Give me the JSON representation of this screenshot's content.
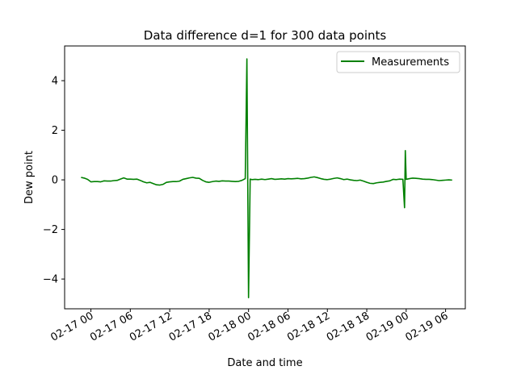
{
  "chart_data": {
    "type": "line",
    "title": "Data difference d=1 for 300 data points",
    "xlabel": "Date and time",
    "ylabel": "Dew point",
    "x_axis": {
      "kind": "datetime",
      "range": [
        "2017-02-16 20:00",
        "2017-02-19 09:00"
      ],
      "ticks": [
        {
          "value": "2017-02-17 00:00",
          "label": "02-17 00"
        },
        {
          "value": "2017-02-17 06:00",
          "label": "02-17 06"
        },
        {
          "value": "2017-02-17 12:00",
          "label": "02-17 12"
        },
        {
          "value": "2017-02-17 18:00",
          "label": "02-17 18"
        },
        {
          "value": "2017-02-18 00:00",
          "label": "02-18 00"
        },
        {
          "value": "2017-02-18 06:00",
          "label": "02-18 06"
        },
        {
          "value": "2017-02-18 12:00",
          "label": "02-18 12"
        },
        {
          "value": "2017-02-18 18:00",
          "label": "02-18 18"
        },
        {
          "value": "2017-02-19 00:00",
          "label": "02-19 00"
        },
        {
          "value": "2017-02-19 06:00",
          "label": "02-19 06"
        }
      ]
    },
    "y_axis": {
      "range": [
        -5.2,
        5.4
      ],
      "ticks": [
        {
          "value": -4,
          "label": "−4"
        },
        {
          "value": -2,
          "label": "−2"
        },
        {
          "value": 0,
          "label": "0"
        },
        {
          "value": 2,
          "label": "2"
        },
        {
          "value": 4,
          "label": "4"
        }
      ]
    },
    "grid": false,
    "legend": {
      "position": "top-right",
      "entries": [
        "Measurements"
      ]
    },
    "series": [
      {
        "name": "Measurements",
        "color": "#008000",
        "points": [
          [
            "2017-02-16 22:30",
            0.1
          ],
          [
            "2017-02-16 23:00",
            0.07
          ],
          [
            "2017-02-16 23:30",
            0.02
          ],
          [
            "2017-02-17 00:00",
            -0.08
          ],
          [
            "2017-02-17 00:30",
            -0.07
          ],
          [
            "2017-02-17 01:00",
            -0.07
          ],
          [
            "2017-02-17 01:30",
            -0.08
          ],
          [
            "2017-02-17 02:00",
            -0.04
          ],
          [
            "2017-02-17 02:30",
            -0.05
          ],
          [
            "2017-02-17 03:00",
            -0.05
          ],
          [
            "2017-02-17 03:30",
            -0.03
          ],
          [
            "2017-02-17 04:00",
            -0.02
          ],
          [
            "2017-02-17 04:30",
            0.03
          ],
          [
            "2017-02-17 05:00",
            0.08
          ],
          [
            "2017-02-17 05:30",
            0.03
          ],
          [
            "2017-02-17 06:00",
            0.03
          ],
          [
            "2017-02-17 06:30",
            0.02
          ],
          [
            "2017-02-17 07:00",
            0.03
          ],
          [
            "2017-02-17 07:30",
            -0.02
          ],
          [
            "2017-02-17 08:00",
            -0.08
          ],
          [
            "2017-02-17 08:30",
            -0.12
          ],
          [
            "2017-02-17 09:00",
            -0.1
          ],
          [
            "2017-02-17 09:30",
            -0.15
          ],
          [
            "2017-02-17 10:00",
            -0.2
          ],
          [
            "2017-02-17 10:30",
            -0.21
          ],
          [
            "2017-02-17 11:00",
            -0.18
          ],
          [
            "2017-02-17 11:30",
            -0.1
          ],
          [
            "2017-02-17 12:00",
            -0.08
          ],
          [
            "2017-02-17 12:30",
            -0.07
          ],
          [
            "2017-02-17 13:00",
            -0.07
          ],
          [
            "2017-02-17 13:30",
            -0.05
          ],
          [
            "2017-02-17 14:00",
            0.02
          ],
          [
            "2017-02-17 14:30",
            0.05
          ],
          [
            "2017-02-17 15:00",
            0.08
          ],
          [
            "2017-02-17 15:30",
            0.1
          ],
          [
            "2017-02-17 16:00",
            0.07
          ],
          [
            "2017-02-17 16:30",
            0.06
          ],
          [
            "2017-02-17 17:00",
            -0.02
          ],
          [
            "2017-02-17 17:30",
            -0.08
          ],
          [
            "2017-02-17 18:00",
            -0.1
          ],
          [
            "2017-02-17 18:30",
            -0.07
          ],
          [
            "2017-02-17 19:00",
            -0.05
          ],
          [
            "2017-02-17 19:30",
            -0.06
          ],
          [
            "2017-02-17 20:00",
            -0.04
          ],
          [
            "2017-02-17 20:30",
            -0.05
          ],
          [
            "2017-02-17 21:00",
            -0.05
          ],
          [
            "2017-02-17 21:30",
            -0.06
          ],
          [
            "2017-02-17 22:00",
            -0.07
          ],
          [
            "2017-02-17 22:30",
            -0.06
          ],
          [
            "2017-02-17 23:00",
            -0.02
          ],
          [
            "2017-02-17 23:30",
            0.05
          ],
          [
            "2017-02-17 23:45",
            4.88
          ],
          [
            "2017-02-18 00:00",
            -4.75
          ],
          [
            "2017-02-18 00:15",
            0.03
          ],
          [
            "2017-02-18 00:30",
            0.01
          ],
          [
            "2017-02-18 01:00",
            0.02
          ],
          [
            "2017-02-18 01:30",
            0.01
          ],
          [
            "2017-02-18 02:00",
            0.03
          ],
          [
            "2017-02-18 02:30",
            0.01
          ],
          [
            "2017-02-18 03:00",
            0.03
          ],
          [
            "2017-02-18 03:30",
            0.05
          ],
          [
            "2017-02-18 04:00",
            0.02
          ],
          [
            "2017-02-18 04:30",
            0.03
          ],
          [
            "2017-02-18 05:00",
            0.04
          ],
          [
            "2017-02-18 05:30",
            0.03
          ],
          [
            "2017-02-18 06:00",
            0.05
          ],
          [
            "2017-02-18 06:30",
            0.04
          ],
          [
            "2017-02-18 07:00",
            0.05
          ],
          [
            "2017-02-18 07:30",
            0.06
          ],
          [
            "2017-02-18 08:00",
            0.04
          ],
          [
            "2017-02-18 08:30",
            0.05
          ],
          [
            "2017-02-18 09:00",
            0.07
          ],
          [
            "2017-02-18 09:30",
            0.1
          ],
          [
            "2017-02-18 10:00",
            0.12
          ],
          [
            "2017-02-18 10:30",
            0.09
          ],
          [
            "2017-02-18 11:00",
            0.05
          ],
          [
            "2017-02-18 11:30",
            0.02
          ],
          [
            "2017-02-18 12:00",
            0.01
          ],
          [
            "2017-02-18 12:30",
            0.03
          ],
          [
            "2017-02-18 13:00",
            0.06
          ],
          [
            "2017-02-18 13:30",
            0.08
          ],
          [
            "2017-02-18 14:00",
            0.05
          ],
          [
            "2017-02-18 14:30",
            0.01
          ],
          [
            "2017-02-18 15:00",
            0.03
          ],
          [
            "2017-02-18 15:30",
            0.0
          ],
          [
            "2017-02-18 16:00",
            -0.02
          ],
          [
            "2017-02-18 16:30",
            -0.03
          ],
          [
            "2017-02-18 17:00",
            -0.01
          ],
          [
            "2017-02-18 17:30",
            -0.05
          ],
          [
            "2017-02-18 18:00",
            -0.1
          ],
          [
            "2017-02-18 18:30",
            -0.14
          ],
          [
            "2017-02-18 19:00",
            -0.15
          ],
          [
            "2017-02-18 19:30",
            -0.12
          ],
          [
            "2017-02-18 20:00",
            -0.1
          ],
          [
            "2017-02-18 20:30",
            -0.09
          ],
          [
            "2017-02-18 21:00",
            -0.06
          ],
          [
            "2017-02-18 21:30",
            -0.04
          ],
          [
            "2017-02-18 22:00",
            0.02
          ],
          [
            "2017-02-18 22:30",
            0.01
          ],
          [
            "2017-02-18 23:00",
            0.03
          ],
          [
            "2017-02-18 23:30",
            0.02
          ],
          [
            "2017-02-18 23:45",
            -1.12
          ],
          [
            "2017-02-18 23:52",
            1.18
          ],
          [
            "2017-02-19 00:00",
            0.02
          ],
          [
            "2017-02-19 00:30",
            0.05
          ],
          [
            "2017-02-19 01:00",
            0.07
          ],
          [
            "2017-02-19 01:30",
            0.06
          ],
          [
            "2017-02-19 02:00",
            0.05
          ],
          [
            "2017-02-19 02:30",
            0.03
          ],
          [
            "2017-02-19 03:00",
            0.02
          ],
          [
            "2017-02-19 03:30",
            0.02
          ],
          [
            "2017-02-19 04:00",
            0.01
          ],
          [
            "2017-02-19 04:30",
            -0.01
          ],
          [
            "2017-02-19 05:00",
            -0.03
          ],
          [
            "2017-02-19 05:30",
            -0.02
          ],
          [
            "2017-02-19 06:00",
            -0.01
          ],
          [
            "2017-02-19 06:30",
            0.0
          ],
          [
            "2017-02-19 07:00",
            -0.01
          ]
        ]
      }
    ]
  }
}
